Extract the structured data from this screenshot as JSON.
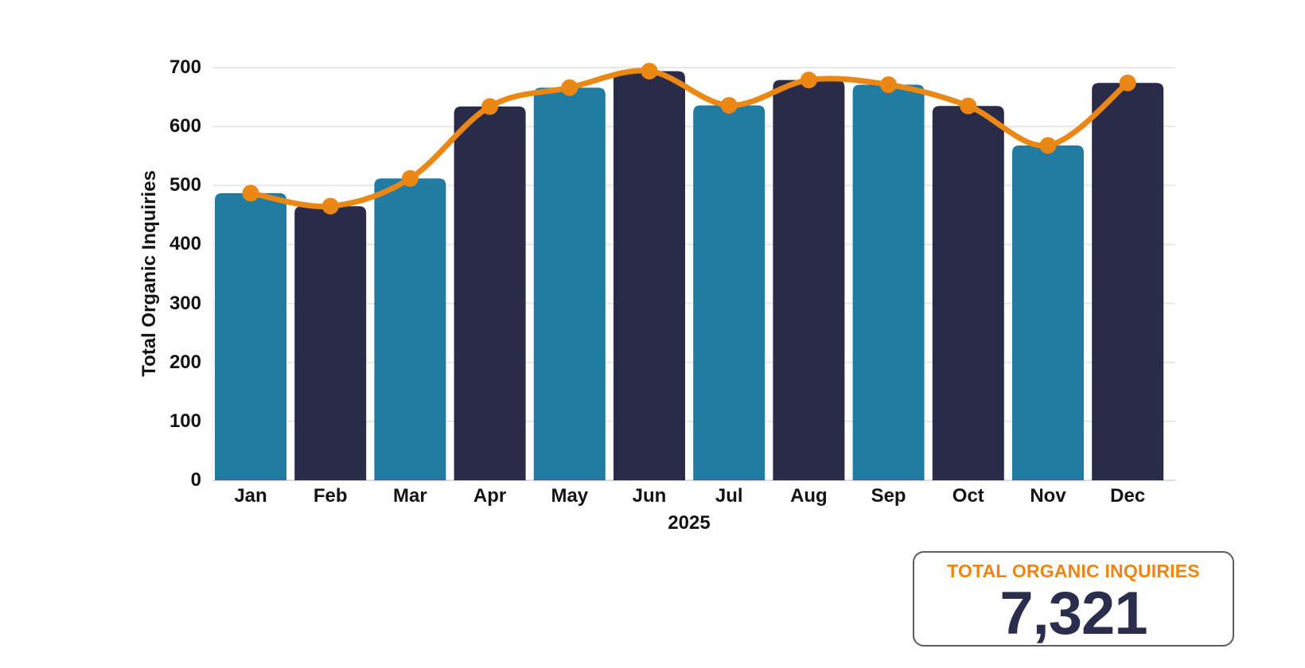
{
  "chart_data": {
    "type": "bar",
    "title": "",
    "categories": [
      "Jan",
      "Feb",
      "Mar",
      "Apr",
      "May",
      "Jun",
      "Jul",
      "Aug",
      "Sep",
      "Oct",
      "Nov",
      "Dec"
    ],
    "series": [
      {
        "name": "Total Organic Inquiries (bars)",
        "type": "bar",
        "values": [
          487,
          465,
          512,
          634,
          666,
          694,
          636,
          679,
          671,
          635,
          568,
          674
        ]
      },
      {
        "name": "Total Organic Inquiries (trend line)",
        "type": "line",
        "values": [
          487,
          465,
          512,
          634,
          666,
          694,
          636,
          679,
          671,
          635,
          568,
          674
        ]
      }
    ],
    "xlabel": "2025",
    "ylabel": "Total Organic Inquiries",
    "ylim": [
      0,
      700
    ],
    "yticks": [
      0,
      100,
      200,
      300,
      400,
      500,
      600,
      700
    ],
    "grid": true,
    "legend_position": "none",
    "bar_color_odd_months": "#217BA2",
    "bar_color_even_months": "#2A2B48",
    "line_color": "#EB8714",
    "marker_color": "#EB8714"
  },
  "summary_card": {
    "title": "TOTAL ORGANIC INQUIRIES",
    "value": "7,321",
    "title_color": "#EE8512",
    "value_color": "#2B2D4D",
    "border_color": "#5C5C5C"
  },
  "colors": {
    "background": "#FFFFFF",
    "gridline": "#E7E7E7",
    "baseline": "#DBDBDB",
    "axis_text": "#141414"
  }
}
